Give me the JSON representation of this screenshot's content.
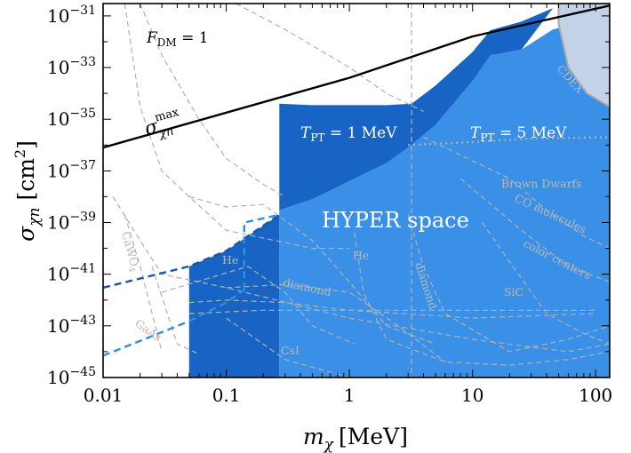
{
  "chart_data": {
    "type": "area",
    "title": "",
    "x_scale": "log",
    "y_scale": "log",
    "xlim": [
      0.01,
      130
    ],
    "ylim": [
      1e-45,
      3e-31
    ],
    "xlabel": {
      "main": "m",
      "sub": "χ",
      "unit": "[MeV]"
    },
    "ylabel": {
      "main": "σ",
      "sub": "χn",
      "unit": "[cm",
      "sup": "2",
      "close": "]"
    },
    "x_ticks": [
      {
        "value": 0.01,
        "label": "0.01"
      },
      {
        "value": 0.1,
        "label": "0.1"
      },
      {
        "value": 1,
        "label": "1"
      },
      {
        "value": 10,
        "label": "10"
      },
      {
        "value": 100,
        "label": "100"
      }
    ],
    "y_ticks": [
      {
        "exp": -31,
        "base": "10",
        "sup": "−31"
      },
      {
        "exp": -33,
        "base": "10",
        "sup": "−33"
      },
      {
        "exp": -35,
        "base": "10",
        "sup": "−35"
      },
      {
        "exp": -37,
        "base": "10",
        "sup": "−37"
      },
      {
        "exp": -39,
        "base": "10",
        "sup": "−39"
      },
      {
        "exp": -41,
        "base": "10",
        "sup": "−41"
      },
      {
        "exp": -43,
        "base": "10",
        "sup": "−43"
      },
      {
        "exp": -45,
        "base": "10",
        "sup": "−45"
      }
    ],
    "colors": {
      "tpt5_fill": "#3a8fe6",
      "tpt1_fill": "#1864c4",
      "max_line": "#000000",
      "cdex_fill": "#c3d2e6",
      "cdex_edge": "#a9a9a9",
      "gray_curve": "#b0b0b0",
      "dash_dark": "#1b55a8",
      "dash_light": "#2f8fe0"
    },
    "regions": {
      "tpt5": {
        "name": "T_PT = 5 MeV",
        "points": [
          [
            0.27,
            3e-39
          ],
          [
            0.5,
            8e-39
          ],
          [
            1,
            4e-38
          ],
          [
            2,
            2e-37
          ],
          [
            3,
            8e-37
          ],
          [
            5,
            6e-36
          ],
          [
            10,
            3e-34
          ],
          [
            14,
            3e-33
          ],
          [
            25,
            5e-33
          ],
          [
            45,
            3e-32
          ],
          [
            130,
            1e-31
          ],
          [
            130,
            1e-45
          ],
          [
            0.27,
            1e-45
          ]
        ]
      },
      "tpt1": {
        "name": "T_PT = 1 MeV",
        "points": [
          [
            0.05,
            2e-41
          ],
          [
            0.1,
            8e-41
          ],
          [
            0.15,
            3e-40
          ],
          [
            0.27,
            2e-39
          ],
          [
            0.27,
            4e-35
          ],
          [
            0.5,
            3.5e-35
          ],
          [
            1,
            3.5e-35
          ],
          [
            2,
            3.5e-35
          ],
          [
            3.2,
            4e-35
          ],
          [
            5,
            2e-34
          ],
          [
            10,
            4e-33
          ],
          [
            14,
            2.8e-32
          ],
          [
            25,
            6e-32
          ],
          [
            45,
            2e-31
          ],
          [
            25,
            5e-33
          ],
          [
            14,
            3e-33
          ],
          [
            10,
            3e-34
          ],
          [
            5,
            6e-36
          ],
          [
            3,
            8e-37
          ],
          [
            2,
            2e-37
          ],
          [
            1,
            4e-38
          ],
          [
            0.5,
            8e-39
          ],
          [
            0.27,
            3e-39
          ],
          [
            0.27,
            1e-45
          ],
          [
            0.05,
            1e-45
          ]
        ]
      },
      "cdex": {
        "name": "CDEX",
        "points": [
          [
            50,
            3e-31
          ],
          [
            50,
            5e-32
          ],
          [
            60,
            1e-33
          ],
          [
            85,
            1e-34
          ],
          [
            130,
            3e-35
          ],
          [
            130,
            3e-31
          ]
        ]
      }
    },
    "max_line": {
      "points": [
        [
          0.01,
          8e-37
        ],
        [
          1,
          4e-34
        ],
        [
          10,
          1.6e-32
        ],
        [
          130,
          2.5e-31
        ]
      ]
    },
    "dashed_extensions": [
      {
        "points": [
          [
            0.01,
            3e-42
          ],
          [
            0.05,
            2e-41
          ],
          [
            0.1,
            8e-41
          ],
          [
            0.15,
            3e-40
          ],
          [
            0.27,
            2e-39
          ]
        ],
        "color_key": "dash_dark"
      },
      {
        "points": [
          [
            0.01,
            7e-45
          ],
          [
            0.05,
            1.5e-43
          ],
          [
            0.1,
            8e-43
          ],
          [
            0.14,
            2.5e-42
          ]
        ],
        "color_key": "dash_light"
      },
      {
        "points": [
          [
            0.14,
            2.5e-42
          ],
          [
            0.14,
            1e-39
          ],
          [
            0.27,
            2e-39
          ]
        ],
        "color_key": "dash_light"
      }
    ],
    "limit_curves": [
      {
        "label": "Brown Dwarfs",
        "points": [
          [
            3,
            1e-36
          ],
          [
            10,
            1.3e-36
          ],
          [
            30,
            1.8e-36
          ],
          [
            130,
            2e-36
          ]
        ],
        "dotted": true
      },
      {
        "label": "CO molecules",
        "points": [
          [
            4,
            2e-36
          ],
          [
            20,
            5e-38
          ],
          [
            40,
            3e-39
          ],
          [
            80,
            3e-40
          ],
          [
            130,
            1e-40
          ]
        ]
      },
      {
        "label": "color centers",
        "points": [
          [
            8,
            5e-38
          ],
          [
            25,
            5e-40
          ],
          [
            60,
            2e-41
          ],
          [
            130,
            5e-42
          ]
        ]
      },
      {
        "label": "SiC",
        "points": [
          [
            12,
            1e-39
          ],
          [
            20,
            3e-41
          ],
          [
            40,
            3e-43
          ],
          [
            80,
            5e-44
          ],
          [
            130,
            2e-44
          ]
        ]
      },
      {
        "label": "diamond",
        "points": [
          [
            3,
            2e-39
          ],
          [
            4,
            2e-41
          ],
          [
            6,
            3e-43
          ],
          [
            20,
            1e-44
          ],
          [
            60,
            3e-44
          ],
          [
            130,
            1e-43
          ]
        ]
      },
      {
        "label": "He",
        "points": [
          [
            1.1,
            4e-40
          ],
          [
            1.3,
            2e-42
          ],
          [
            2,
            3e-44
          ],
          [
            6,
            4e-45
          ],
          [
            20,
            3e-45
          ],
          [
            60,
            5e-45
          ],
          [
            130,
            1e-44
          ]
        ]
      },
      {
        "label": "diamond",
        "points": [
          [
            0.1,
            3e-42
          ],
          [
            0.3,
            4e-42
          ],
          [
            1,
            2e-42
          ],
          [
            2.5,
            1e-43
          ],
          [
            6,
            4e-45
          ]
        ]
      },
      {
        "label": "He",
        "points": [
          [
            0.03,
            2e-42
          ],
          [
            0.15,
            2e-41
          ],
          [
            0.3,
            2e-42
          ],
          [
            0.5,
            1e-43
          ],
          [
            1.1,
            2e-44
          ]
        ]
      },
      {
        "label": "CsI",
        "points": [
          [
            0.1,
            2e-43
          ],
          [
            0.3,
            5e-45
          ],
          [
            1,
            1e-45
          ]
        ]
      },
      {
        "label": "GaAs",
        "points": [
          [
            0.025,
            2e-41
          ],
          [
            0.04,
            2e-44
          ],
          [
            0.06,
            8e-45
          ]
        ]
      },
      {
        "label": "CaWO",
        "points": [
          [
            0.015,
            2e-39
          ],
          [
            0.02,
            2e-41
          ],
          [
            0.03,
            1e-44
          ]
        ]
      },
      {
        "label": "",
        "points": [
          [
            0.012,
            1e-38
          ],
          [
            0.02,
            2e-40
          ],
          [
            0.03,
            1e-41
          ],
          [
            0.1,
            3e-42
          ],
          [
            1,
            2e-43
          ],
          [
            10,
            3e-44
          ],
          [
            60,
            1e-44
          ],
          [
            130,
            2e-44
          ]
        ]
      },
      {
        "label": "",
        "points": [
          [
            0.015,
            3e-31
          ],
          [
            0.02,
            3e-35
          ],
          [
            0.03,
            1e-37
          ],
          [
            0.05,
            1e-38
          ],
          [
            0.1,
            5e-40
          ],
          [
            0.5,
            1e-40
          ],
          [
            1,
            1e-40
          ]
        ]
      },
      {
        "label": "",
        "points": [
          [
            0.02,
            3e-31
          ],
          [
            0.03,
            3e-33
          ],
          [
            0.06,
            1e-35
          ],
          [
            0.1,
            3e-37
          ],
          [
            0.2,
            3e-38
          ],
          [
            0.3,
            1e-38
          ]
        ]
      },
      {
        "label": "",
        "points": [
          [
            0.05,
            1e-38
          ],
          [
            0.1,
            4e-39
          ],
          [
            0.2,
            5e-39
          ],
          [
            0.5,
            2e-40
          ],
          [
            1,
            5e-42
          ],
          [
            2,
            1e-43
          ],
          [
            5,
            2e-44
          ]
        ]
      },
      {
        "label": "",
        "points": [
          [
            0.12,
            3e-31
          ],
          [
            0.3,
            3e-32
          ],
          [
            1,
            1e-33
          ],
          [
            2,
            1e-34
          ],
          [
            4,
            2e-35
          ]
        ]
      },
      {
        "label": "",
        "points": [
          [
            0.05,
            8e-43
          ],
          [
            0.1,
            1e-42
          ],
          [
            0.3,
            8e-43
          ],
          [
            1,
            4e-43
          ],
          [
            10,
            2e-43
          ],
          [
            100,
            3e-43
          ]
        ]
      },
      {
        "label": "",
        "points": [
          [
            0.05,
            3e-43
          ],
          [
            0.2,
            4e-43
          ],
          [
            1,
            4e-43
          ],
          [
            10,
            4e-43
          ],
          [
            100,
            4e-43
          ]
        ]
      },
      {
        "label": "",
        "points": [
          [
            3.2,
            3e-31
          ],
          [
            3.2,
            1e-45
          ]
        ]
      }
    ],
    "annotations": {
      "fdm": {
        "main": "F",
        "sub": "DM",
        "rest": " = 1"
      },
      "sigma_max": {
        "main": "σ",
        "sup": "max",
        "sub": "χn"
      },
      "tpt1": {
        "main": "T",
        "sub": "PT",
        "rest": " = 1 MeV"
      },
      "tpt5": {
        "main": "T",
        "sub": "PT",
        "rest": " = 5 MeV"
      },
      "hyper": "HYPER space",
      "cdex": "CDEX",
      "brown_dwarfs": "Brown Dwarfs",
      "co_molecules": "CO molecules",
      "color_centers": "color centers",
      "sic": "SiC",
      "diamond_1": "diamond",
      "diamond_2": "diamond",
      "he_1": "He",
      "he_2": "He",
      "cawo": "CaWO",
      "cawo_sub": "4",
      "gaas": "GaAs",
      "csi": "CsI"
    }
  }
}
